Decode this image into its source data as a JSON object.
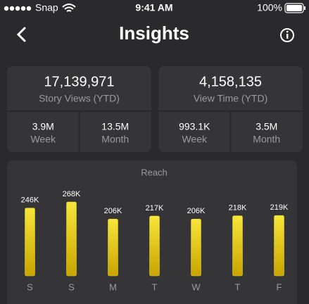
{
  "status_bar": {
    "carrier": "Snap",
    "time": "9:41 AM",
    "battery": "100%"
  },
  "header": {
    "title": "Insights"
  },
  "cards": [
    {
      "value": "17,139,971",
      "label": "Story Views (YTD)",
      "stats": [
        {
          "value": "3.9M",
          "label": "Week"
        },
        {
          "value": "13.5M",
          "label": "Month"
        }
      ]
    },
    {
      "value": "4,158,135",
      "label": "View Time (YTD)",
      "stats": [
        {
          "value": "993.1K",
          "label": "Week"
        },
        {
          "value": "3.5M",
          "label": "Month"
        }
      ]
    }
  ],
  "chart_data": {
    "type": "bar",
    "title": "Reach",
    "categories": [
      "S",
      "S",
      "M",
      "T",
      "W",
      "T",
      "F"
    ],
    "values": [
      246000,
      268000,
      206000,
      217000,
      206000,
      218000,
      219000
    ],
    "value_labels": [
      "246K",
      "268K",
      "206K",
      "217K",
      "206K",
      "218K",
      "219K"
    ],
    "color": "#f2dc2e"
  }
}
